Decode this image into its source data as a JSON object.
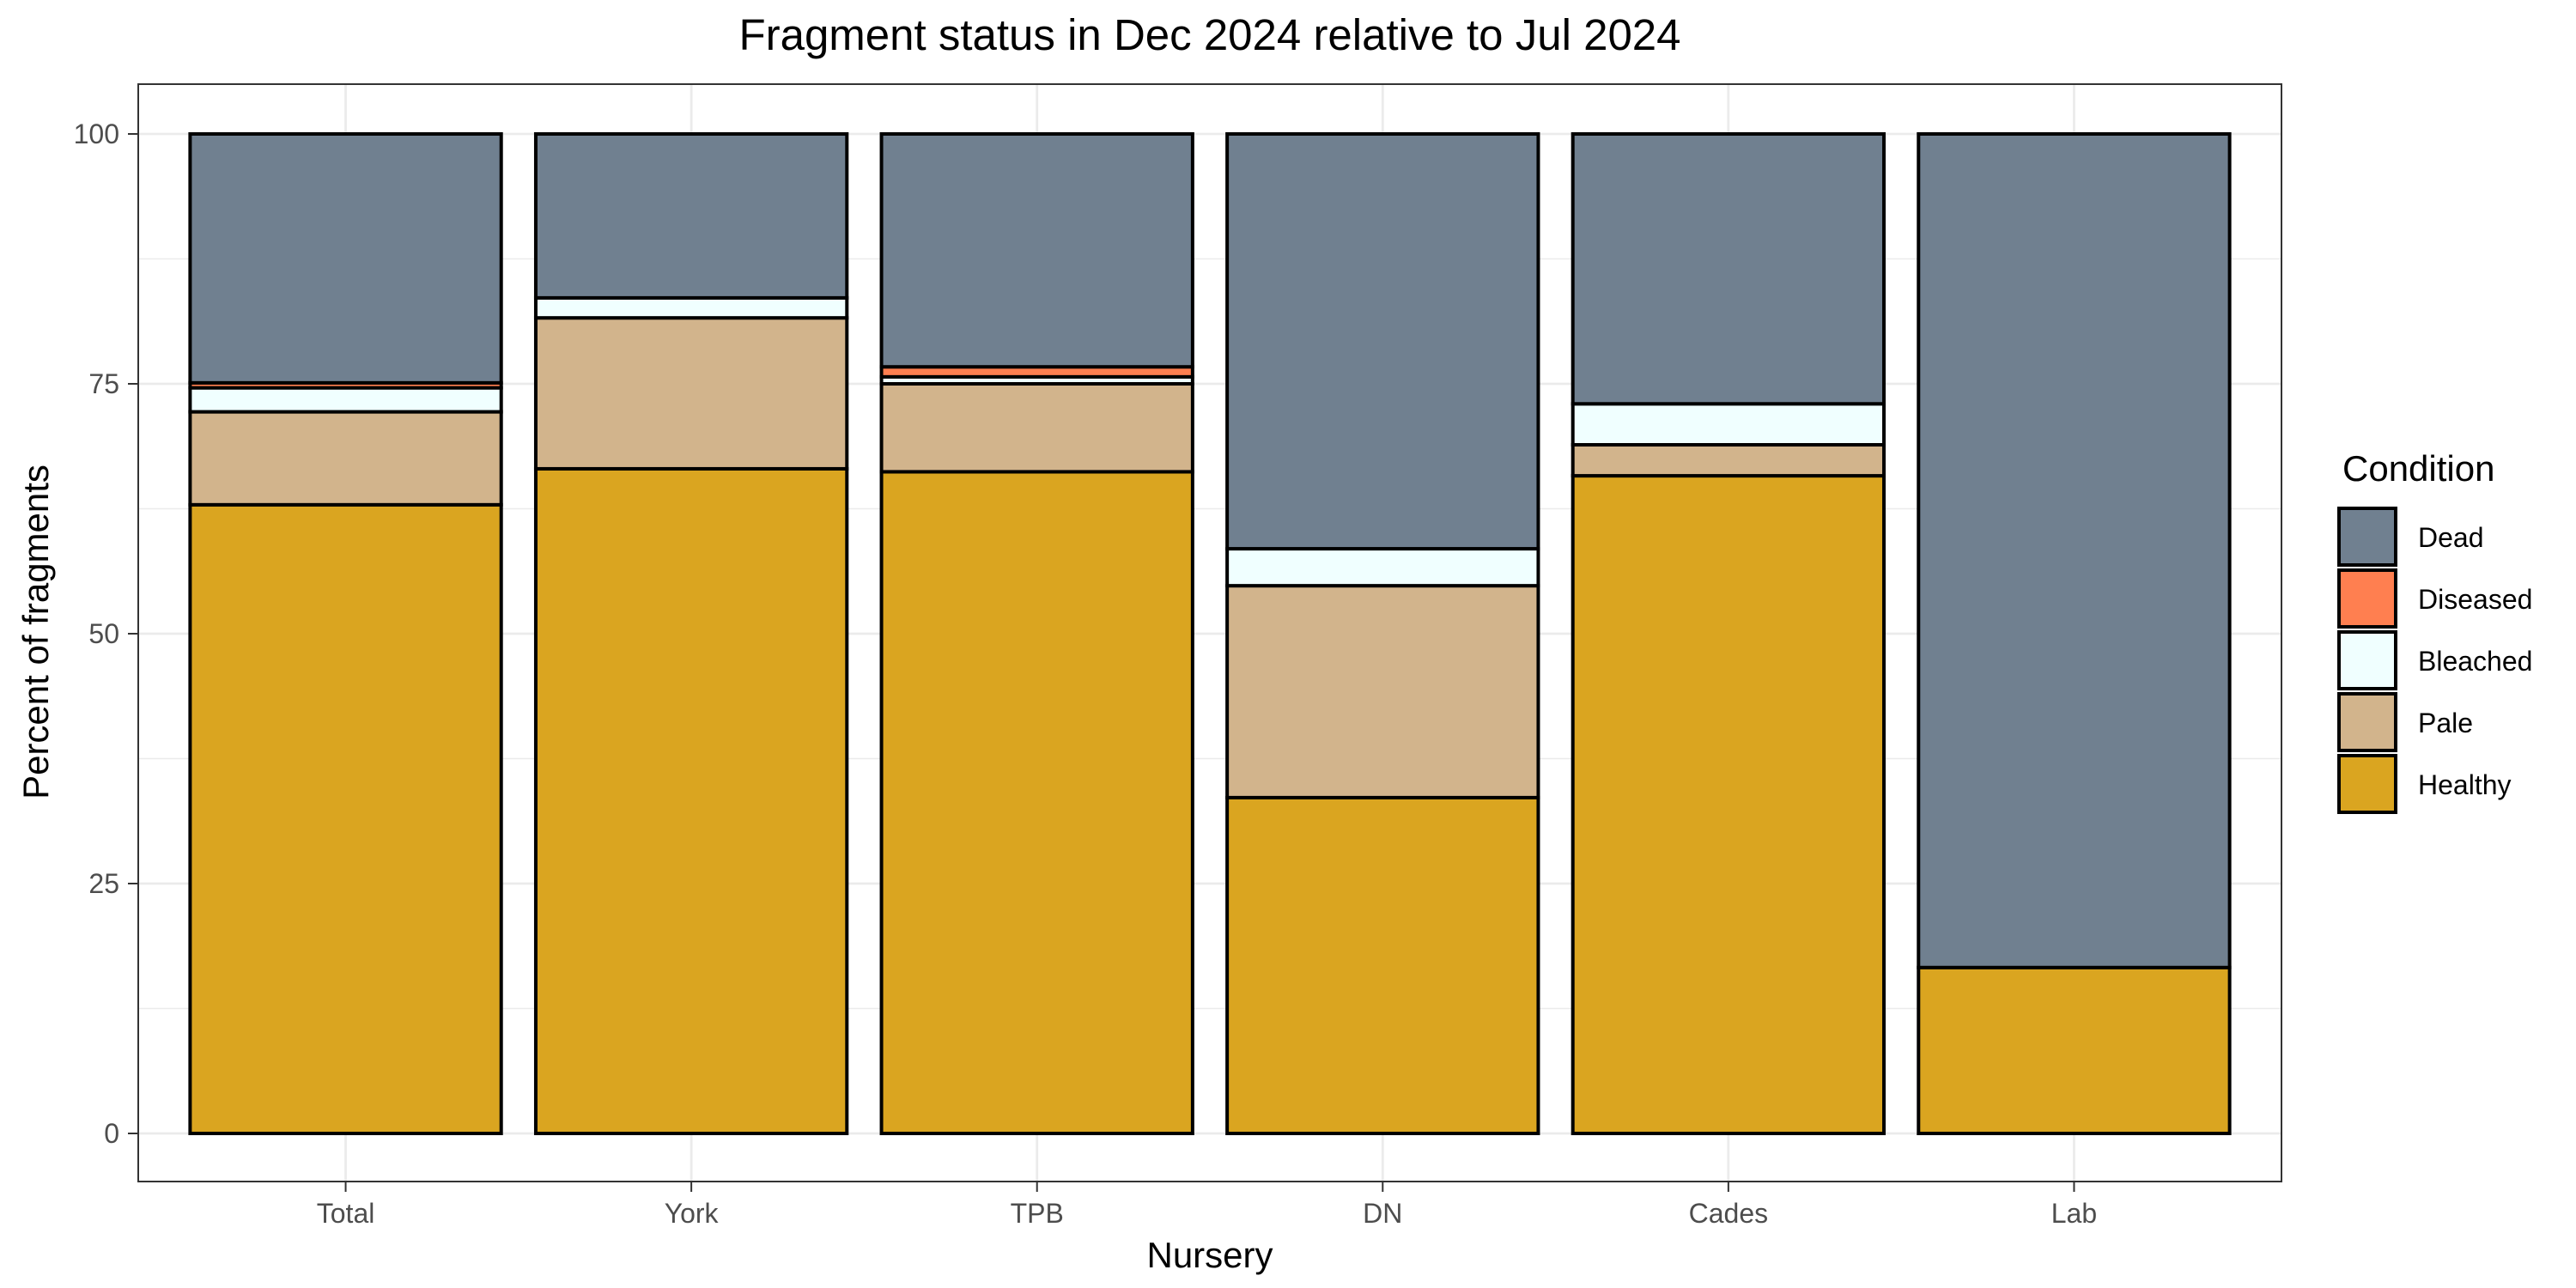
{
  "chart_data": {
    "type": "bar",
    "stacked": true,
    "title": "Fragment status in Dec 2024 relative to Jul 2024",
    "xlabel": "Nursery",
    "ylabel": "Percent of fragments",
    "ylim": [
      0,
      100
    ],
    "yticks": [
      0,
      25,
      50,
      75,
      100
    ],
    "grid": true,
    "legend": {
      "title": "Condition",
      "position": "right",
      "entries": [
        "Dead",
        "Diseased",
        "Bleached",
        "Pale",
        "Healthy"
      ]
    },
    "categories": [
      "Total",
      "York",
      "TPB",
      "DN",
      "Cades",
      "Lab"
    ],
    "series": [
      {
        "name": "Healthy",
        "color": "#DAA520",
        "values": [
          62.9,
          66.5,
          66.2,
          33.6,
          65.8,
          16.6
        ]
      },
      {
        "name": "Pale",
        "color": "#D2B48C",
        "values": [
          9.3,
          15.1,
          8.8,
          21.2,
          3.1,
          0
        ]
      },
      {
        "name": "Bleached",
        "color": "#F0FFFF",
        "values": [
          2.4,
          2.0,
          0.7,
          3.7,
          4.1,
          0
        ]
      },
      {
        "name": "Diseased",
        "color": "#FF7F50",
        "values": [
          0.5,
          0,
          1.0,
          0,
          0,
          0
        ]
      },
      {
        "name": "Dead",
        "color": "#708090",
        "values": [
          24.9,
          16.4,
          23.3,
          41.5,
          27.0,
          83.4
        ]
      }
    ]
  }
}
